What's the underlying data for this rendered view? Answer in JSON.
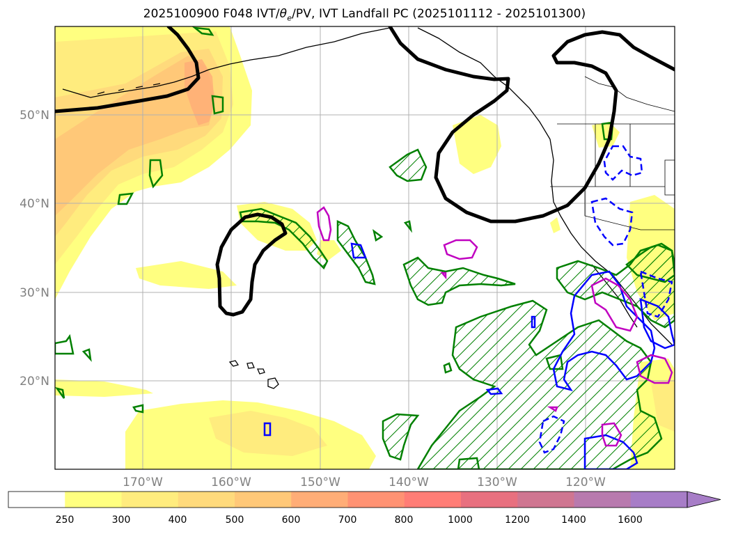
{
  "title_main": "2025100900 F048 IVT/",
  "title_theta": "θ",
  "title_sub": "e",
  "title_rest": "/PV, IVT Landfall PC (2025101112 - 2025101300)",
  "map": {
    "lat_labels": [
      {
        "value": 50,
        "text": "50°N"
      },
      {
        "value": 40,
        "text": "40°N"
      },
      {
        "value": 30,
        "text": "30°N"
      },
      {
        "value": 20,
        "text": "20°N"
      }
    ],
    "lon_labels": [
      {
        "value": -170,
        "text": "170°W"
      },
      {
        "value": -160,
        "text": "160°W"
      },
      {
        "value": -150,
        "text": "150°W"
      },
      {
        "value": -140,
        "text": "140°W"
      },
      {
        "value": -130,
        "text": "130°W"
      },
      {
        "value": -120,
        "text": "120°W"
      }
    ],
    "colors": {
      "ivt_pc_contour": "#008000",
      "theta_contour": "#0000ff",
      "pv_contour": "#c000c0",
      "jet_contour": "#000000",
      "coastline": "#000000",
      "grid": "#b0b0b0"
    }
  },
  "colorbar": {
    "levels": [
      "250",
      "300",
      "400",
      "500",
      "600",
      "700",
      "800",
      "1000",
      "1200",
      "1400",
      "1600"
    ],
    "colors": [
      "#ffffff",
      "#ffff80",
      "#ffec7e",
      "#ffda7c",
      "#ffc878",
      "#ffad77",
      "#ff9273",
      "#ff7d76",
      "#e8707f",
      "#cf7691",
      "#b87aae",
      "#a77dc7"
    ],
    "extend": "max"
  }
}
